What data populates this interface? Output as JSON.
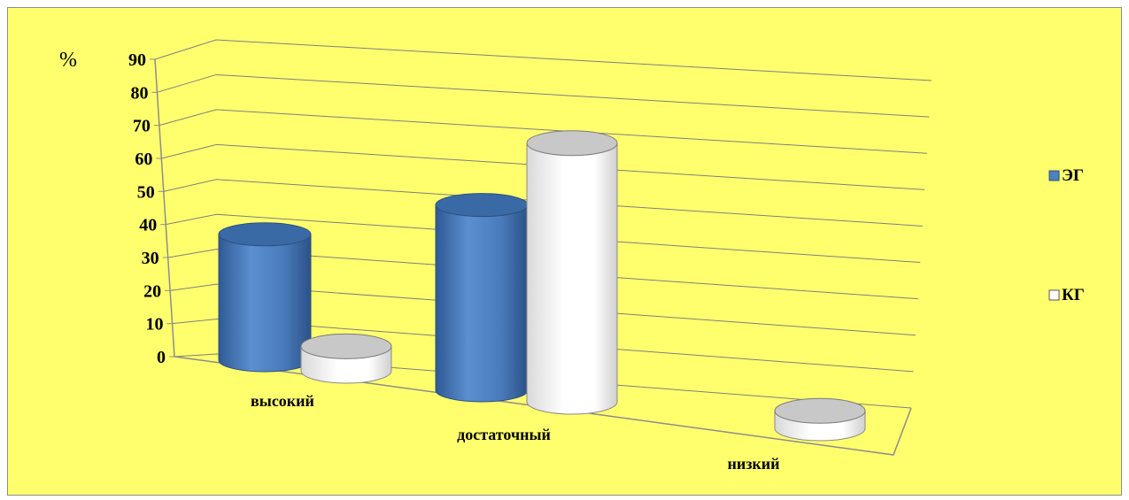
{
  "chart_data": {
    "type": "bar",
    "style": "3d-cylinder",
    "unit_label": "%",
    "categories": [
      "высокий",
      "достаточный",
      "низкий"
    ],
    "series": [
      {
        "name": "ЭГ",
        "values": [
          36,
          53,
          0
        ],
        "color": "#4f81bd"
      },
      {
        "name": "КГ",
        "values": [
          7,
          74,
          5
        ],
        "color": "#ffffff"
      }
    ],
    "ylim": [
      0,
      90
    ],
    "y_ticks": [
      0,
      10,
      20,
      30,
      40,
      50,
      60,
      70,
      80,
      90
    ],
    "grid": true,
    "legend_position": "right"
  },
  "colors": {
    "background": "#ffff6e",
    "axis": "#8c8c8c",
    "gridline": "#7f7f7f",
    "series_blue": "#4f81bd",
    "series_white_top": "#c8c8c8"
  }
}
